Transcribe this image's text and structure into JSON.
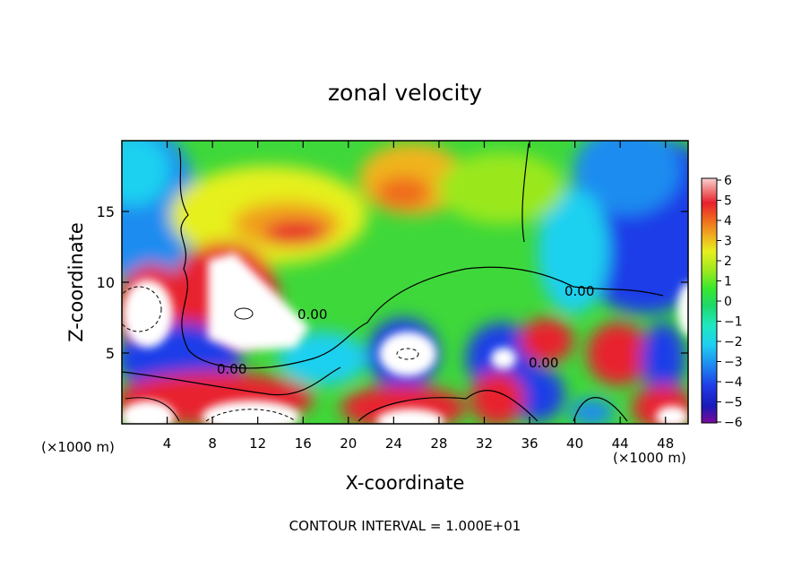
{
  "chart_data": {
    "type": "heatmap",
    "title": "zonal velocity",
    "xlabel": "X-coordinate",
    "ylabel": "Z-coordinate",
    "x_unit_label": "(×1000 m)",
    "x_unit_label_right": "(×1000 m)",
    "xlim": [
      0,
      50
    ],
    "ylim": [
      0,
      20
    ],
    "x_ticks": [
      4,
      8,
      12,
      16,
      20,
      24,
      28,
      32,
      36,
      40,
      44,
      48
    ],
    "y_ticks": [
      5,
      10,
      15
    ],
    "contour_interval_text": "CONTOUR INTERVAL = 1.000E+01",
    "contour_labels": [
      "0.00",
      "0.00",
      "0.00",
      "0.00"
    ],
    "colorbar": {
      "ticks": [
        "6",
        "5",
        "4",
        "3",
        "2",
        "1",
        "0",
        "−1",
        "−2",
        "−3",
        "−4",
        "−5",
        "−6"
      ],
      "min": -6,
      "max": 6,
      "colors": [
        "#7a0a9a",
        "#1a1ab8",
        "#1e2ee8",
        "#1e7cf0",
        "#1eb8f0",
        "#1ee8d8",
        "#1ed87a",
        "#2ee82e",
        "#8ce81e",
        "#dcf01e",
        "#f0c81e",
        "#f08a1e",
        "#f04a1e",
        "#e81e2e",
        "#f07878",
        "#fac8c8"
      ]
    },
    "grid": false
  }
}
